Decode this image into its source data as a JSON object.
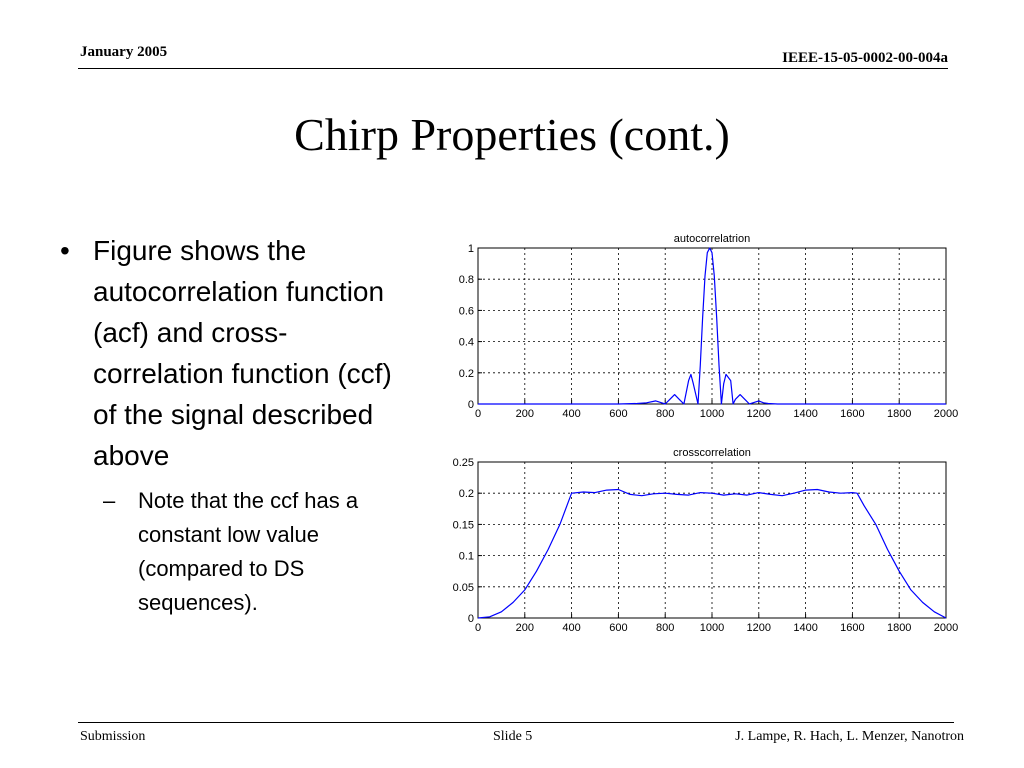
{
  "header": {
    "date": "January 2005",
    "doc_id": "IEEE-15-05-0002-00-004a"
  },
  "slide_title": "Chirp Properties (cont.)",
  "bullets": {
    "main": "Figure shows the autocorrelation function (acf) and cross-correlation function (ccf) of the signal described above",
    "sub": "Note that the ccf has a constant low value (compared to DS sequences).",
    "main_marker": "•",
    "sub_marker": "–"
  },
  "footer": {
    "left": "Submission",
    "center": "Slide 5",
    "right": "J. Lampe, R. Hach, L. Menzer, Nanotron"
  },
  "chart_data": [
    {
      "type": "line",
      "title": "autocorrelatrion",
      "xlim": [
        0,
        2000
      ],
      "ylim": [
        0,
        1
      ],
      "xticks": [
        0,
        200,
        400,
        600,
        800,
        1000,
        1200,
        1400,
        1600,
        1800,
        2000
      ],
      "yticks": [
        0,
        0.2,
        0.4,
        0.6,
        0.8,
        1
      ],
      "ytick_labels": [
        "0",
        "0.2",
        "0.4",
        "0.6",
        "0.8",
        "1"
      ],
      "grid": true,
      "line_color": "#0000ff",
      "series": [
        {
          "x": [
            0,
            600,
            680,
            720,
            760,
            780,
            800,
            820,
            840,
            860,
            880,
            900,
            910,
            920,
            940,
            950,
            960,
            970,
            980,
            990,
            1000,
            1010,
            1020,
            1030,
            1040,
            1050,
            1060,
            1080,
            1090,
            1100,
            1120,
            1140,
            1160,
            1180,
            1200,
            1220,
            1240,
            1280,
            1320,
            1400,
            2000
          ],
          "y": [
            0,
            0,
            0.003,
            0.008,
            0.02,
            0.01,
            0,
            0.03,
            0.06,
            0.03,
            0,
            0.15,
            0.19,
            0.13,
            0,
            0.25,
            0.55,
            0.82,
            0.97,
            1.0,
            0.97,
            0.82,
            0.55,
            0.25,
            0,
            0.13,
            0.19,
            0.15,
            0,
            0.03,
            0.06,
            0.03,
            0,
            0.01,
            0.02,
            0.008,
            0.003,
            0,
            0,
            0,
            0
          ]
        }
      ]
    },
    {
      "type": "line",
      "title": "crosscorrelation",
      "xlim": [
        0,
        2000
      ],
      "ylim": [
        0,
        0.25
      ],
      "xticks": [
        0,
        200,
        400,
        600,
        800,
        1000,
        1200,
        1400,
        1600,
        1800,
        2000
      ],
      "yticks": [
        0,
        0.05,
        0.1,
        0.15,
        0.2,
        0.25
      ],
      "ytick_labels": [
        "0",
        "0.05",
        "0.1",
        "0.15",
        "0.2",
        "0.25"
      ],
      "grid": true,
      "line_color": "#0000ff",
      "series": [
        {
          "x": [
            0,
            50,
            100,
            150,
            200,
            250,
            300,
            350,
            380,
            400,
            450,
            500,
            550,
            600,
            650,
            700,
            750,
            800,
            850,
            900,
            950,
            1000,
            1050,
            1100,
            1150,
            1200,
            1250,
            1300,
            1350,
            1400,
            1450,
            1500,
            1550,
            1600,
            1620,
            1650,
            1700,
            1750,
            1800,
            1850,
            1900,
            1950,
            2000
          ],
          "y": [
            0,
            0.002,
            0.01,
            0.025,
            0.045,
            0.075,
            0.11,
            0.15,
            0.18,
            0.2,
            0.202,
            0.201,
            0.205,
            0.206,
            0.198,
            0.196,
            0.199,
            0.2,
            0.198,
            0.197,
            0.201,
            0.2,
            0.197,
            0.199,
            0.197,
            0.201,
            0.198,
            0.196,
            0.2,
            0.205,
            0.206,
            0.202,
            0.2,
            0.201,
            0.2,
            0.18,
            0.15,
            0.11,
            0.075,
            0.045,
            0.025,
            0.01,
            0
          ]
        }
      ]
    }
  ]
}
